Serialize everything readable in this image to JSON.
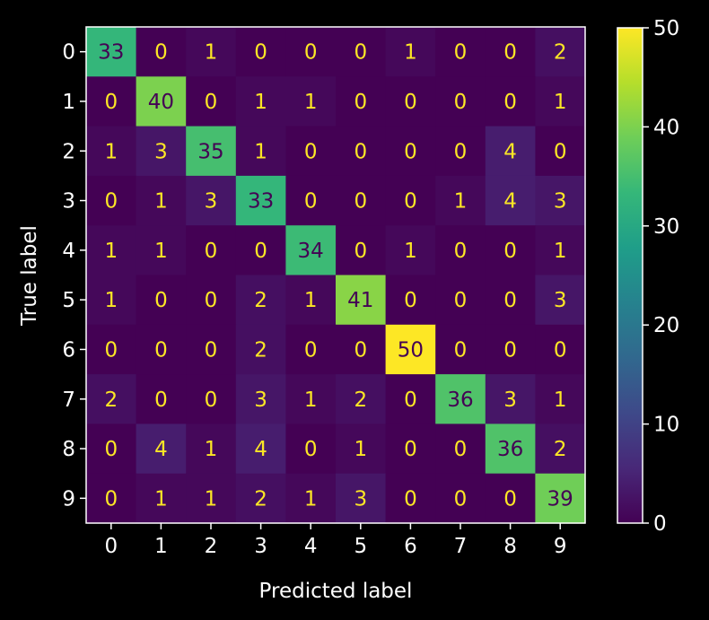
{
  "chart_data": {
    "type": "heatmap",
    "title": "",
    "xlabel": "Predicted label",
    "ylabel": "True label",
    "x_ticks": [
      "0",
      "1",
      "2",
      "3",
      "4",
      "5",
      "6",
      "7",
      "8",
      "9"
    ],
    "y_ticks": [
      "0",
      "1",
      "2",
      "3",
      "4",
      "5",
      "6",
      "7",
      "8",
      "9"
    ],
    "matrix": [
      [
        33,
        0,
        1,
        0,
        0,
        0,
        1,
        0,
        0,
        2
      ],
      [
        0,
        40,
        0,
        1,
        1,
        0,
        0,
        0,
        0,
        1
      ],
      [
        1,
        3,
        35,
        1,
        0,
        0,
        0,
        0,
        4,
        0
      ],
      [
        0,
        1,
        3,
        33,
        0,
        0,
        0,
        1,
        4,
        3
      ],
      [
        1,
        1,
        0,
        0,
        34,
        0,
        1,
        0,
        0,
        1
      ],
      [
        1,
        0,
        0,
        2,
        1,
        41,
        0,
        0,
        0,
        3
      ],
      [
        0,
        0,
        0,
        2,
        0,
        0,
        50,
        0,
        0,
        0
      ],
      [
        2,
        0,
        0,
        3,
        1,
        2,
        0,
        36,
        3,
        1
      ],
      [
        0,
        4,
        1,
        4,
        0,
        1,
        0,
        0,
        36,
        2
      ],
      [
        0,
        1,
        1,
        2,
        1,
        3,
        0,
        0,
        0,
        39
      ]
    ],
    "colormap": "viridis",
    "color_range": [
      0,
      50
    ],
    "colorbar_ticks": [
      0,
      10,
      20,
      30,
      40,
      50
    ],
    "background": "#000000",
    "foreground": "#ffffff",
    "text_on_light": "#440154",
    "text_on_dark": "#fde725"
  }
}
